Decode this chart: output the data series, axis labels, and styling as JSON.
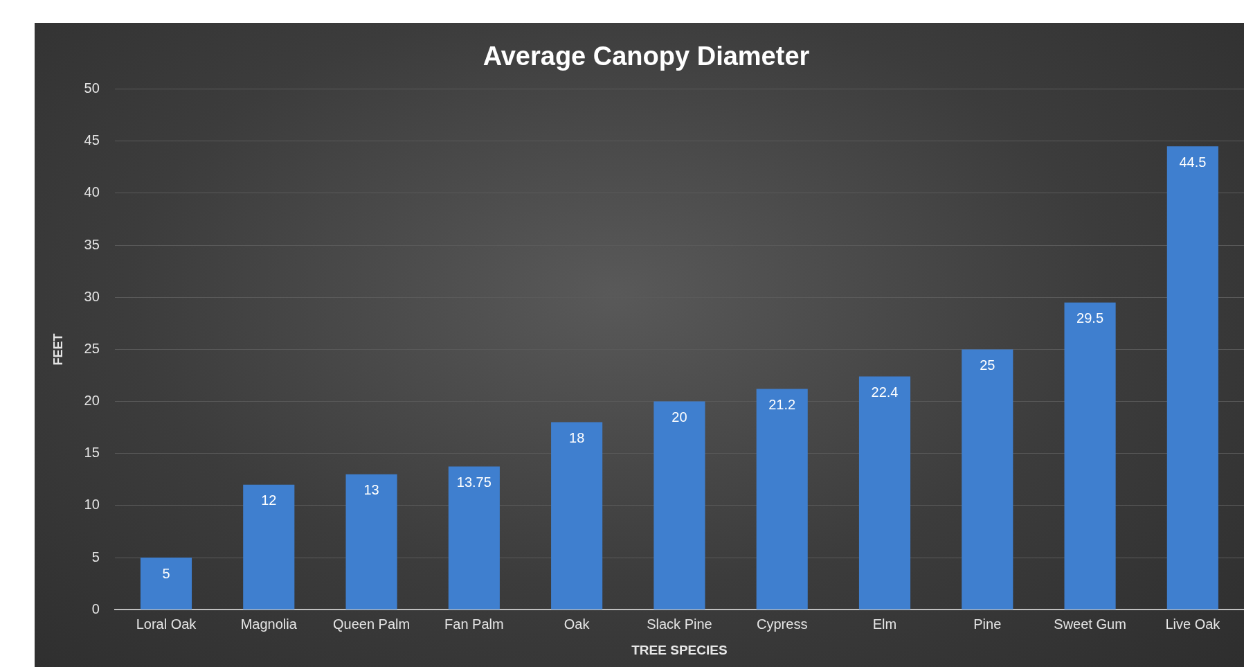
{
  "chart_data": {
    "type": "bar",
    "title": "Average Canopy Diameter",
    "xlabel": "TREE SPECIES",
    "ylabel": "FEET",
    "categories": [
      "Loral Oak",
      "Magnolia",
      "Queen Palm",
      "Fan Palm",
      "Oak",
      "Slack Pine",
      "Cypress",
      "Elm",
      "Pine",
      "Sweet Gum",
      "Live Oak"
    ],
    "values": [
      5,
      12,
      13,
      13.75,
      18,
      20,
      21.2,
      22.4,
      25,
      29.5,
      44.5
    ],
    "color": "#3f7fcf",
    "ylim": [
      0,
      50
    ],
    "yticks": [
      0,
      5,
      10,
      15,
      20,
      25,
      30,
      35,
      40,
      45,
      50
    ],
    "grid": "y",
    "data_labels": true,
    "legend": false
  }
}
